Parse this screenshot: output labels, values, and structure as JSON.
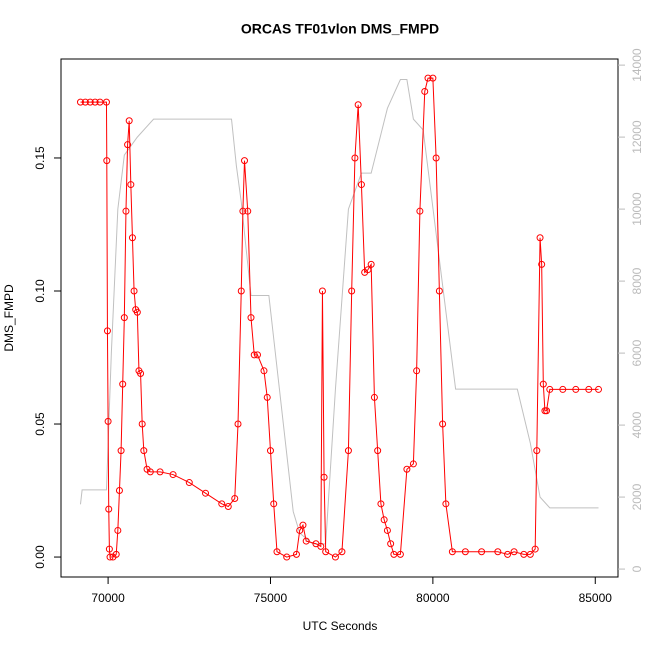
{
  "chart_data": {
    "type": "line",
    "title": "ORCAS TF01vlon DMS_FMPD",
    "xlabel": "UTC Seconds",
    "ylabel": "DMS_FMPD",
    "xlim": [
      68550,
      85700
    ],
    "xticks": [
      70000,
      75000,
      80000,
      85000
    ],
    "ylim": [
      -0.0075,
      0.1872
    ],
    "yticks": [
      {
        "value": 0,
        "label": "0.00"
      },
      {
        "value": 0.05,
        "label": "0.05"
      },
      {
        "value": 0.1,
        "label": "0.10"
      },
      {
        "value": 0.15,
        "label": "0.15"
      }
    ],
    "y2lim": [
      -220,
      14170
    ],
    "y2ticks": [
      0,
      2000,
      4000,
      6000,
      8000,
      10000,
      12000,
      14000
    ],
    "series": [
      {
        "color": "#ff0000",
        "x": [
          69150,
          69300,
          69450,
          69600,
          69750,
          69950,
          69960,
          69980,
          70000,
          70020,
          70040,
          70060,
          70150,
          70250,
          70300,
          70350,
          70400,
          70450,
          70500,
          70550,
          70600,
          70650,
          70700,
          70750,
          70800,
          70850,
          70900,
          70950,
          71000,
          71050,
          71100,
          71200,
          71300,
          71600,
          72000,
          72500,
          73000,
          73500,
          73700,
          73900,
          74000,
          74100,
          74150,
          74200,
          74300,
          74400,
          74500,
          74600,
          74800,
          74900,
          75000,
          75100,
          75200,
          75500,
          75800,
          75900,
          76000,
          76100,
          76400,
          76550,
          76600,
          76650,
          76700,
          77000,
          77200,
          77400,
          77500,
          77600,
          77700,
          77800,
          77900,
          78000,
          78100,
          78200,
          78300,
          78400,
          78500,
          78600,
          78700,
          78800,
          79000,
          79200,
          79400,
          79500,
          79600,
          79750,
          79850,
          80000,
          80100,
          80200,
          80300,
          80400,
          80600,
          81000,
          81500,
          82000,
          82300,
          82500,
          82800,
          83000,
          83150,
          83200,
          83300,
          83350,
          83400,
          83450,
          83500,
          83600,
          84000,
          84400,
          84800,
          85100
        ],
        "values": [
          0.171,
          0.171,
          0.171,
          0.171,
          0.171,
          0.171,
          0.149,
          0.085,
          0.051,
          0.018,
          0.003,
          0,
          0,
          0.001,
          0.01,
          0.025,
          0.04,
          0.065,
          0.09,
          0.13,
          0.155,
          0.164,
          0.14,
          0.12,
          0.1,
          0.093,
          0.092,
          0.07,
          0.069,
          0.05,
          0.04,
          0.033,
          0.032,
          0.032,
          0.031,
          0.028,
          0.024,
          0.02,
          0.019,
          0.022,
          0.05,
          0.1,
          0.13,
          0.149,
          0.13,
          0.09,
          0.076,
          0.076,
          0.07,
          0.06,
          0.04,
          0.02,
          0.002,
          0,
          0.001,
          0.01,
          0.012,
          0.006,
          0.005,
          0.004,
          0.1,
          0.03,
          0.002,
          0,
          0.002,
          0.04,
          0.1,
          0.15,
          0.17,
          0.14,
          0.107,
          0.108,
          0.11,
          0.06,
          0.04,
          0.02,
          0.014,
          0.01,
          0.005,
          0.001,
          0.001,
          0.033,
          0.035,
          0.07,
          0.13,
          0.175,
          0.18,
          0.18,
          0.15,
          0.1,
          0.05,
          0.02,
          0.002,
          0.002,
          0.002,
          0.002,
          0.001,
          0.002,
          0.001,
          0.001,
          0.003,
          0.04,
          0.12,
          0.11,
          0.065,
          0.055,
          0.055,
          0.063,
          0.063,
          0.063,
          0.063,
          0.063
        ]
      },
      {
        "color": "#c0c0c0",
        "axis": "y2",
        "x": [
          69150,
          69200,
          69950,
          70100,
          70300,
          70500,
          70900,
          71400,
          73800,
          73950,
          74100,
          74400,
          74950,
          75700,
          75900,
          76300,
          76700,
          77000,
          77400,
          77800,
          78100,
          78600,
          79000,
          79200,
          79400,
          79700,
          80700,
          81000,
          82600,
          83000,
          83300,
          83600,
          85100
        ],
        "values": [
          1800,
          2200,
          2200,
          6000,
          10000,
          11500,
          12000,
          12500,
          12500,
          11200,
          10200,
          7600,
          7600,
          1600,
          1000,
          700,
          700,
          5000,
          10000,
          11000,
          11000,
          12800,
          13600,
          13600,
          12500,
          12200,
          5000,
          5000,
          5000,
          3500,
          2000,
          1700,
          1700
        ]
      }
    ]
  }
}
